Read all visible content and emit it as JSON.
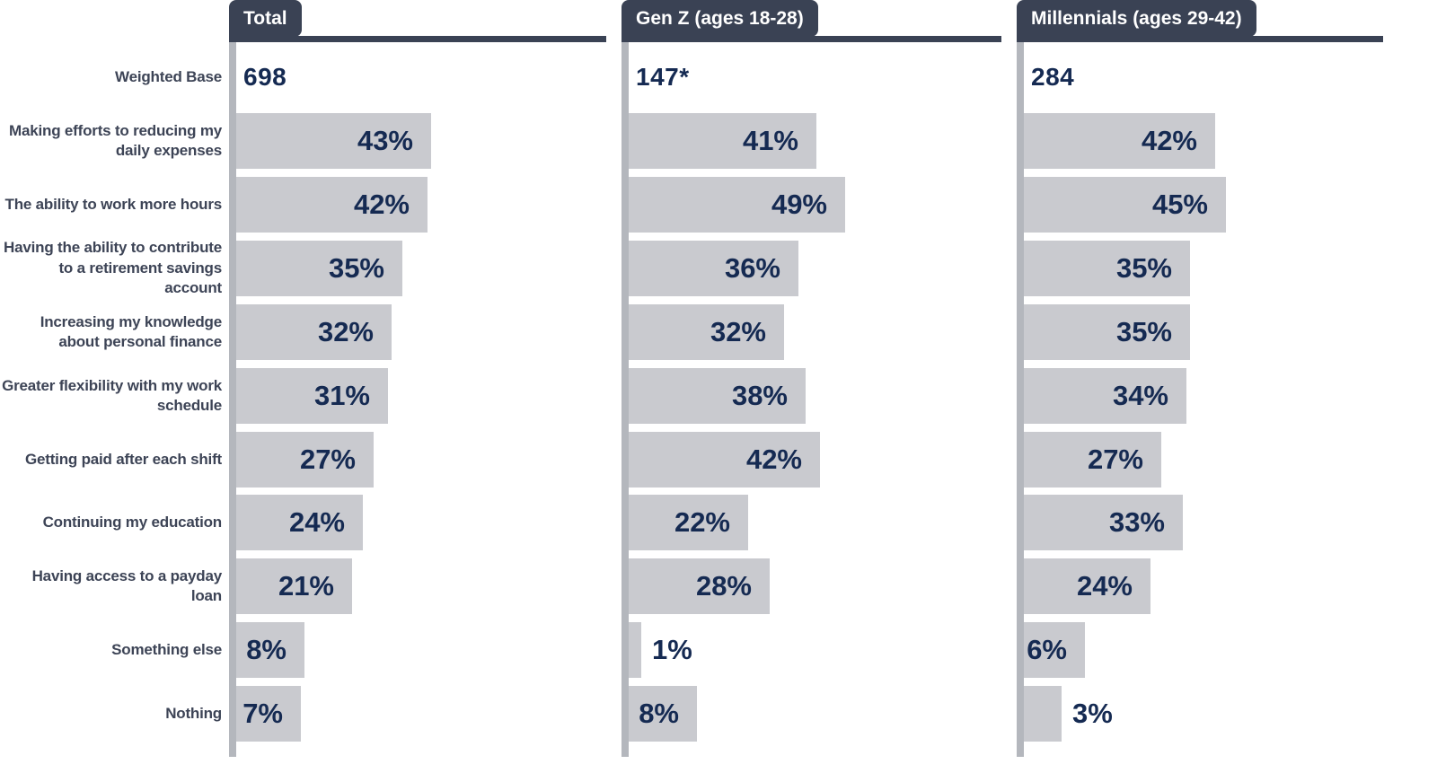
{
  "chart_data": {
    "type": "bar",
    "orientation": "horizontal",
    "value_unit": "%",
    "title": "",
    "grid": false,
    "legend_position": "top-tabs",
    "weighted_base_row_label": "Weighted Base",
    "categories": [
      "Making efforts to reducing my daily expenses",
      "The ability to work more hours",
      "Having the ability to contribute to a retirement savings account",
      "Increasing my knowledge about personal finance",
      "Greater flexibility with my work schedule",
      "Getting paid after each shift",
      "Continuing my education",
      "Having access to a payday loan",
      "Something else",
      "Nothing"
    ],
    "series": [
      {
        "name": "Total",
        "weighted_base": "698",
        "values": [
          43,
          42,
          35,
          32,
          31,
          27,
          24,
          21,
          8,
          7
        ]
      },
      {
        "name": "Gen Z (ages 18-28)",
        "weighted_base": "147*",
        "values": [
          41,
          49,
          36,
          32,
          38,
          42,
          22,
          28,
          1,
          8
        ]
      },
      {
        "name": "Millennials (ages 29-42)",
        "weighted_base": "284",
        "values": [
          42,
          45,
          35,
          35,
          34,
          27,
          33,
          24,
          6,
          3
        ]
      }
    ],
    "colors": {
      "bar": "#c9cacf",
      "value_label": "#152a52",
      "header_bg": "#3a4254",
      "header_text": "#ffffff",
      "axis_line": "#b4b7bd",
      "category_label": "#3d4456"
    }
  }
}
